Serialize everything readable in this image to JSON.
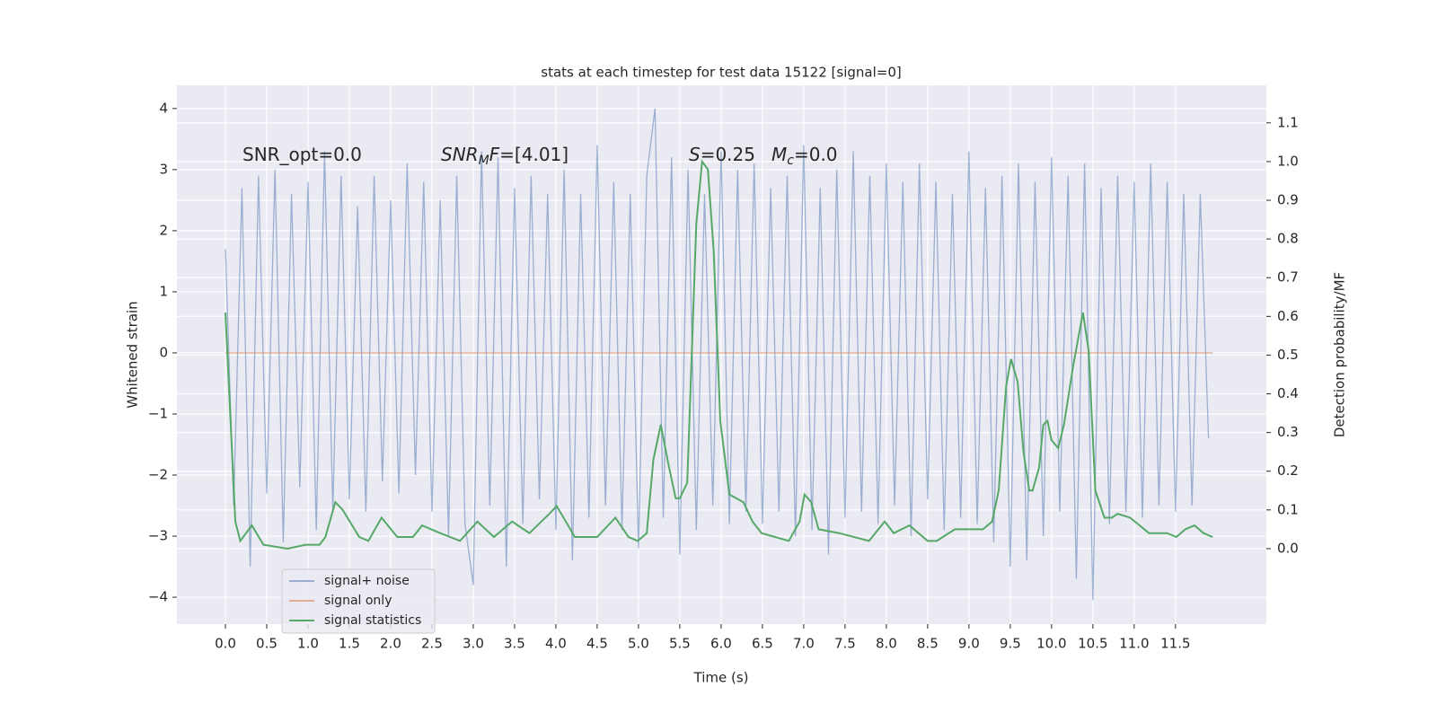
{
  "chart_data": {
    "type": "line",
    "title": "stats at each timestep for test data 15122 [signal=0]",
    "xlabel": "Time (s)",
    "ylabel": "Whitened strain",
    "y2label": "Detection probability/MF",
    "background": "#eaeaf2",
    "grid": true,
    "legend_loc": "lower left",
    "xlim": [
      -0.587,
      12.6
    ],
    "ylim": [
      -4.44,
      4.38
    ],
    "y2lim": [
      -0.195,
      1.197
    ],
    "xticks": [
      {
        "value": 0,
        "label": "0.0"
      },
      0.5,
      {
        "value": 1,
        "label": "1.0"
      },
      1.5,
      {
        "value": 2,
        "label": "2.0"
      },
      2.5,
      {
        "value": 3,
        "label": "3.0"
      },
      3.5,
      {
        "value": 4,
        "label": "4.0"
      },
      4.5,
      {
        "value": 5,
        "label": "5.0"
      },
      5.5,
      {
        "value": 6,
        "label": "6.0"
      },
      6.5,
      {
        "value": 7,
        "label": "7.0"
      },
      7.5,
      {
        "value": 8,
        "label": "8.0"
      },
      8.5,
      {
        "value": 9,
        "label": "9.0"
      },
      9.5,
      {
        "value": 10,
        "label": "10.0"
      },
      10.5,
      {
        "value": 11,
        "label": "11.0"
      },
      11.5
    ],
    "yticks": [
      {
        "value": -4,
        "label": "−4"
      },
      {
        "value": -3,
        "label": "−3"
      },
      {
        "value": -2,
        "label": "−2"
      },
      {
        "value": -1,
        "label": "−1"
      },
      0,
      1,
      2,
      3,
      4
    ],
    "y2ticks": [
      {
        "value": 0,
        "label": "0.0"
      },
      0.1,
      0.2,
      0.3,
      0.4,
      0.5,
      0.6,
      0.7,
      0.8,
      0.9,
      {
        "value": 1,
        "label": "1.0"
      },
      1.1
    ],
    "annotations": [
      {
        "parts": [
          {
            "text": "SNR_opt=0.0",
            "style": "normal"
          }
        ]
      },
      {
        "parts": [
          {
            "text": "SNR",
            "style": "italic"
          },
          {
            "text": "M",
            "style": "italic-sub"
          },
          {
            "text": "F",
            "style": "italic"
          },
          {
            "text": "=[4.01]",
            "style": "normal"
          }
        ]
      },
      {
        "parts": [
          {
            "text": "S",
            "style": "italic"
          },
          {
            "text": "=0.25",
            "style": "normal"
          }
        ]
      },
      {
        "parts": [
          {
            "text": "M",
            "style": "italic"
          },
          {
            "text": "c",
            "style": "italic-sub"
          },
          {
            "text": "=0.0",
            "style": "normal"
          }
        ]
      }
    ],
    "series": [
      {
        "name": "signal+ noise",
        "color": "#4c72b0",
        "opacity": 0.5,
        "x": [
          0.0,
          0.1,
          0.2,
          0.3,
          0.4,
          0.5,
          0.6,
          0.7,
          0.8,
          0.9,
          1.0,
          1.1,
          1.2,
          1.3,
          1.4,
          1.5,
          1.6,
          1.7,
          1.8,
          1.9,
          2.0,
          2.1,
          2.2,
          2.3,
          2.4,
          2.5,
          2.6,
          2.7,
          2.8,
          2.9,
          3.0,
          3.1,
          3.2,
          3.3,
          3.4,
          3.5,
          3.6,
          3.7,
          3.8,
          3.9,
          4.0,
          4.1,
          4.2,
          4.3,
          4.4,
          4.5,
          4.6,
          4.7,
          4.8,
          4.9,
          5.0,
          5.1,
          5.2,
          5.3,
          5.4,
          5.5,
          5.6,
          5.7,
          5.8,
          5.9,
          6.0,
          6.1,
          6.2,
          6.3,
          6.4,
          6.5,
          6.6,
          6.7,
          6.8,
          6.9,
          7.0,
          7.1,
          7.2,
          7.3,
          7.4,
          7.5,
          7.6,
          7.7,
          7.8,
          7.9,
          8.0,
          8.1,
          8.2,
          8.3,
          8.4,
          8.5,
          8.6,
          8.7,
          8.8,
          8.9,
          9.0,
          9.1,
          9.2,
          9.3,
          9.4,
          9.5,
          9.6,
          9.7,
          9.8,
          9.9,
          10.0,
          10.1,
          10.2,
          10.3,
          10.4,
          10.5,
          10.6,
          10.7,
          10.8,
          10.9,
          11.0,
          11.1,
          11.2,
          11.3,
          11.4,
          11.5,
          11.6,
          11.7,
          11.8,
          11.9
        ],
        "values": [
          1.7,
          -2.5,
          2.7,
          -3.5,
          2.9,
          -2.3,
          3.0,
          -3.1,
          2.6,
          -2.2,
          2.8,
          -2.9,
          3.3,
          -2.6,
          2.9,
          -2.4,
          2.4,
          -2.6,
          2.9,
          -2.1,
          2.5,
          -2.3,
          3.1,
          -2.0,
          2.8,
          -2.6,
          2.5,
          -3.0,
          2.9,
          -2.8,
          -3.8,
          3.3,
          -2.5,
          3.2,
          -3.5,
          2.7,
          -2.8,
          2.9,
          -2.4,
          2.6,
          -2.9,
          3.0,
          -3.4,
          2.6,
          -2.7,
          3.4,
          -2.5,
          2.8,
          -2.9,
          2.6,
          -3.2,
          2.9,
          4.0,
          -2.7,
          3.2,
          -3.3,
          3.0,
          -2.9,
          2.6,
          -2.5,
          3.3,
          -2.8,
          3.0,
          -2.6,
          3.1,
          -2.8,
          2.7,
          -2.6,
          2.9,
          -3.0,
          3.4,
          -2.9,
          2.7,
          -3.3,
          3.0,
          -2.7,
          3.3,
          -2.6,
          2.9,
          -2.8,
          3.1,
          -2.5,
          2.8,
          -3.0,
          3.1,
          -2.4,
          2.8,
          -2.9,
          2.6,
          -2.7,
          3.3,
          -2.8,
          2.7,
          -3.1,
          2.9,
          -3.5,
          3.1,
          -3.4,
          2.8,
          -3.0,
          3.2,
          -2.6,
          2.9,
          -3.7,
          3.1,
          -4.05,
          2.7,
          -2.8,
          2.9,
          -2.6,
          2.8,
          -2.7,
          3.1,
          -2.5,
          2.8,
          -2.6,
          2.6,
          -2.5,
          2.6,
          -1.4
        ]
      },
      {
        "name": "signal only",
        "color": "#dd8452",
        "opacity": 0.6,
        "x": [
          0.0,
          11.95
        ],
        "values": [
          0,
          0
        ]
      },
      {
        "name": "signal statistics",
        "color": "#55a868",
        "opacity": 1,
        "axis": "y2",
        "x": [
          0.0,
          0.12,
          0.18,
          0.32,
          0.46,
          0.75,
          0.97,
          1.14,
          1.21,
          1.33,
          1.42,
          1.62,
          1.73,
          1.89,
          2.08,
          2.27,
          2.38,
          2.6,
          2.84,
          3.05,
          3.25,
          3.47,
          3.68,
          3.92,
          4.01,
          4.23,
          4.5,
          4.72,
          4.88,
          4.99,
          5.1,
          5.18,
          5.27,
          5.37,
          5.45,
          5.5,
          5.59,
          5.7,
          5.77,
          5.84,
          5.91,
          5.99,
          6.1,
          6.27,
          6.38,
          6.49,
          6.82,
          6.95,
          7.01,
          7.09,
          7.18,
          7.43,
          7.79,
          7.98,
          8.09,
          8.28,
          8.5,
          8.61,
          8.83,
          9.07,
          9.17,
          9.28,
          9.36,
          9.45,
          9.51,
          9.59,
          9.66,
          9.73,
          9.77,
          9.85,
          9.9,
          9.95,
          10.0,
          10.08,
          10.15,
          10.26,
          10.38,
          10.45,
          10.53,
          10.64,
          10.73,
          10.8,
          10.95,
          11.18,
          11.4,
          11.51,
          11.62,
          11.73,
          11.84,
          11.95
        ],
        "values": [
          0.61,
          0.07,
          0.02,
          0.06,
          0.01,
          0.0,
          0.01,
          0.01,
          0.03,
          0.12,
          0.1,
          0.03,
          0.02,
          0.08,
          0.03,
          0.03,
          0.06,
          0.04,
          0.02,
          0.07,
          0.03,
          0.07,
          0.04,
          0.09,
          0.11,
          0.03,
          0.03,
          0.08,
          0.03,
          0.02,
          0.04,
          0.23,
          0.32,
          0.21,
          0.13,
          0.13,
          0.17,
          0.84,
          1.0,
          0.98,
          0.77,
          0.33,
          0.14,
          0.12,
          0.07,
          0.04,
          0.02,
          0.07,
          0.14,
          0.12,
          0.05,
          0.04,
          0.02,
          0.07,
          0.04,
          0.06,
          0.02,
          0.02,
          0.05,
          0.05,
          0.05,
          0.07,
          0.15,
          0.42,
          0.49,
          0.43,
          0.25,
          0.15,
          0.15,
          0.21,
          0.32,
          0.33,
          0.28,
          0.26,
          0.32,
          0.47,
          0.61,
          0.51,
          0.15,
          0.08,
          0.08,
          0.09,
          0.08,
          0.04,
          0.04,
          0.03,
          0.05,
          0.06,
          0.04,
          0.03
        ]
      }
    ]
  }
}
